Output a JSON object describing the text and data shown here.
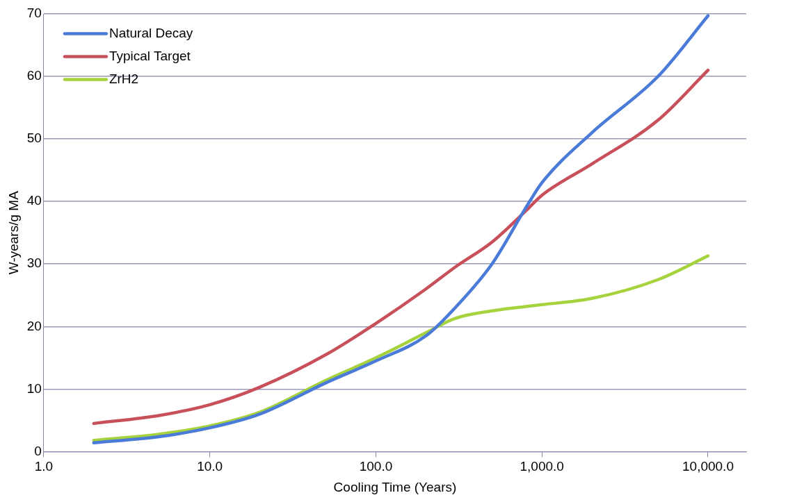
{
  "chart_data": {
    "type": "line",
    "xlabel": "Cooling Time (Years)",
    "ylabel": "W-years/g MA",
    "x": [
      2,
      5,
      10,
      20,
      50,
      100,
      200,
      300,
      500,
      800,
      1000,
      2000,
      5000,
      10000
    ],
    "series": [
      {
        "name": "Natural Decay",
        "color": "#4a7bd8",
        "values": [
          1.4,
          2.4,
          3.8,
          6,
          11,
          14.5,
          18.5,
          23,
          30,
          39,
          43,
          51,
          60,
          69.7
        ]
      },
      {
        "name": "Typical Target",
        "color": "#c8505a",
        "values": [
          4.5,
          5.8,
          7.5,
          10.3,
          15.5,
          20.5,
          26,
          29.5,
          33.5,
          38.5,
          41,
          46,
          53,
          61
        ]
      },
      {
        "name": "ZrH2",
        "color": "#a6d23e",
        "values": [
          1.8,
          2.8,
          4.1,
          6.3,
          11.4,
          15,
          19,
          21.3,
          22.5,
          23.2,
          23.5,
          24.5,
          27.5,
          31.3
        ]
      }
    ],
    "log": "x",
    "xlim": [
      1,
      17000
    ],
    "xticks": [
      {
        "value": 1,
        "label": "1.0"
      },
      {
        "value": 10,
        "label": "10.0"
      },
      {
        "value": 100,
        "label": "100.0"
      },
      {
        "value": 1000,
        "label": "1,000.0"
      },
      {
        "value": 10000,
        "label": "10,000.0"
      }
    ],
    "ylim": [
      0,
      70
    ],
    "yticks": [
      0,
      10,
      20,
      30,
      40,
      50,
      60,
      70
    ],
    "grid": "y",
    "legend": "top left",
    "marker": "none",
    "line_style": "solid"
  }
}
